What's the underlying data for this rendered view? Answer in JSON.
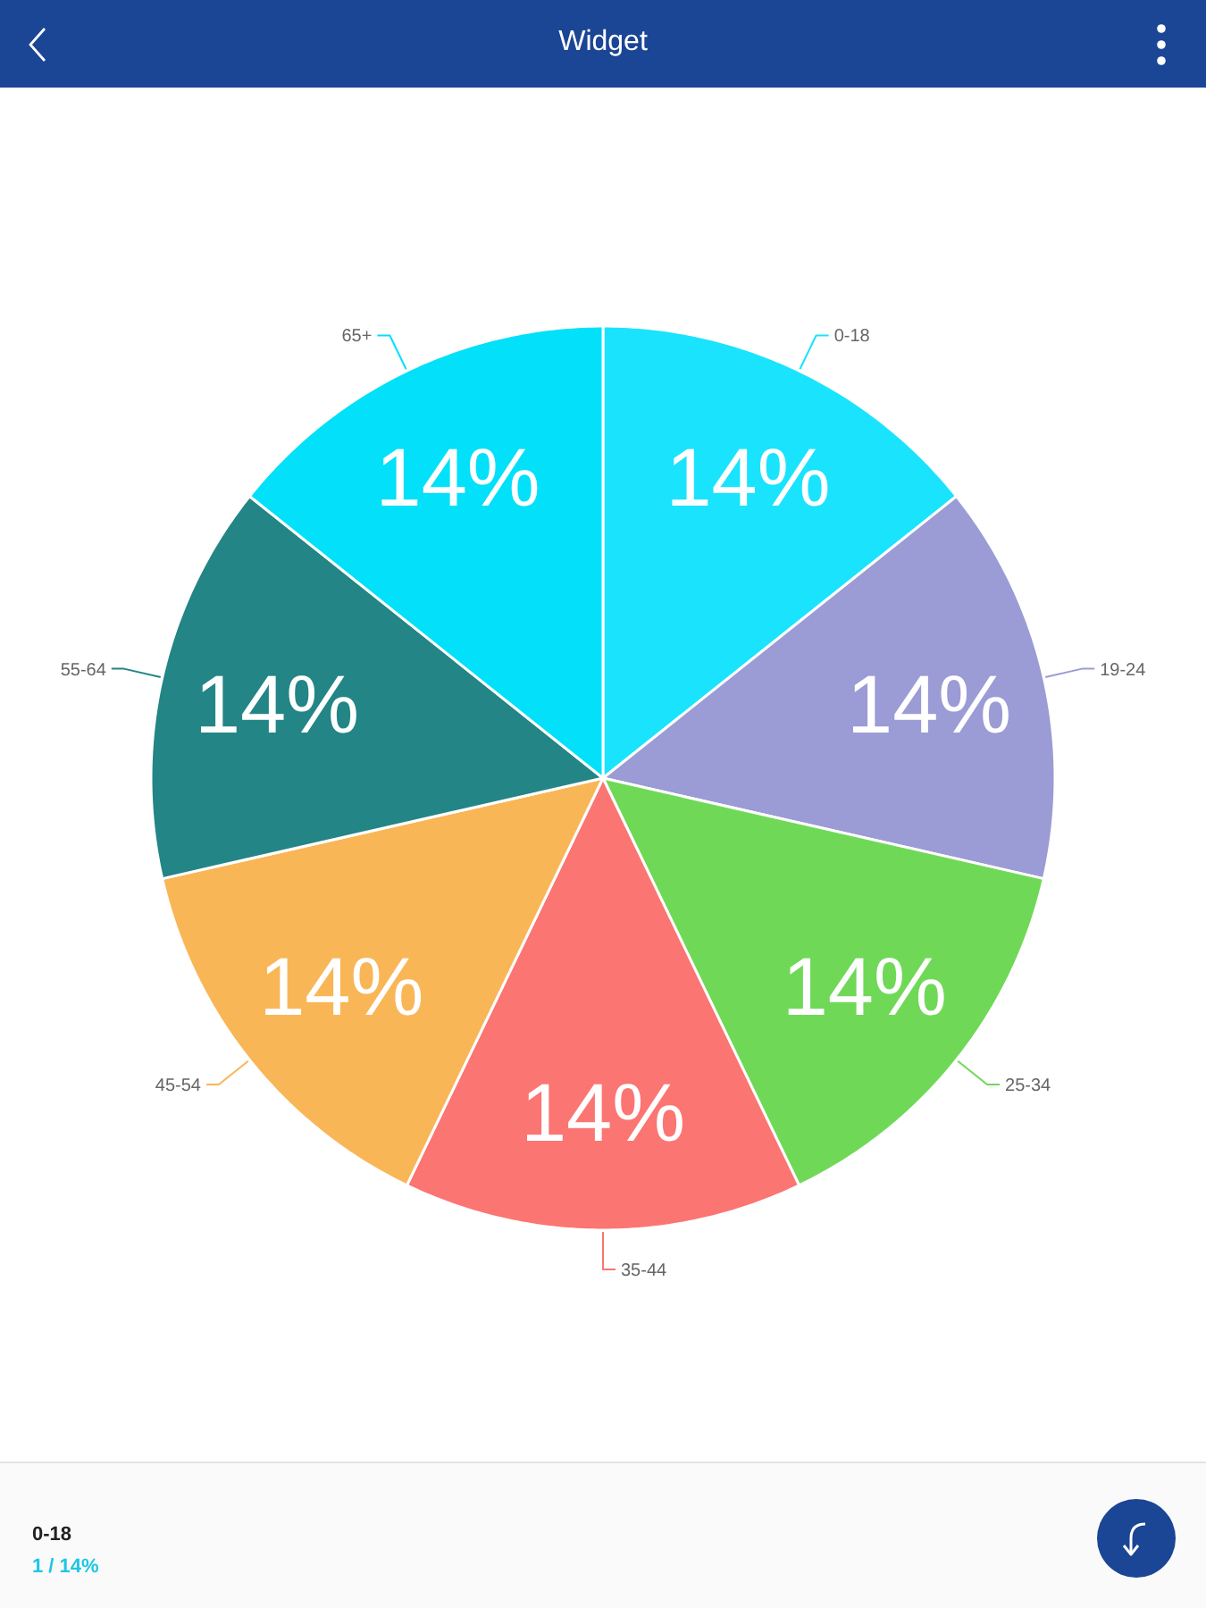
{
  "chart_data": {
    "type": "pie",
    "title": "Widget",
    "categories": [
      "0-18",
      "19-24",
      "25-34",
      "35-44",
      "45-54",
      "55-64",
      "65+"
    ],
    "values": [
      14,
      14,
      14,
      14,
      14,
      14,
      14
    ],
    "value_labels": [
      "14%",
      "14%",
      "14%",
      "14%",
      "14%",
      "14%",
      "14%"
    ],
    "colors": [
      "#1ae3fd",
      "#9b9bd5",
      "#6fd957",
      "#fb7572",
      "#f9b657",
      "#238585",
      "#03e0f9"
    ],
    "annotations": [
      "0-18",
      "1 / 14%"
    ]
  }
}
